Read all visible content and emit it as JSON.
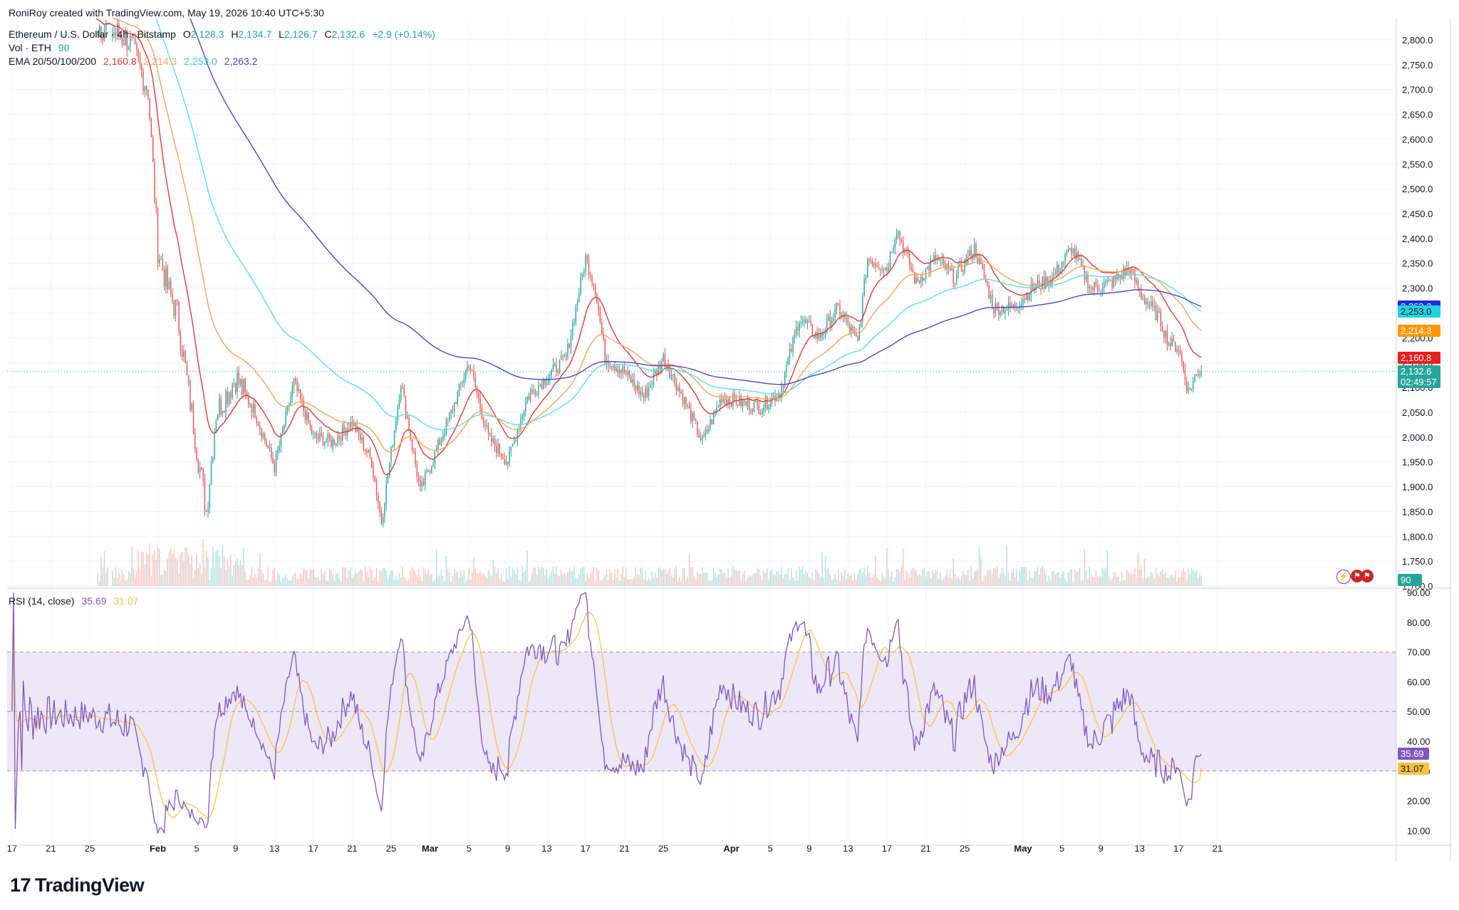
{
  "credit": "RoniRoy created with TradingView.com, May 19, 2026 10:40 UTC+5:30",
  "symbol": {
    "name": "Ethereum / U.S. Dollar · 4h · Bitstamp",
    "o_label": "O",
    "o": "2,128.3",
    "h_label": "H",
    "h": "2,134.7",
    "l_label": "L",
    "l": "2,126.7",
    "c_label": "C",
    "c": "2,132.6",
    "change": "+2.9 (+0.14%)"
  },
  "volume_legend": {
    "label": "Vol · ETH",
    "value": "90"
  },
  "ema_legend": {
    "label": "EMA 20/50/100/200",
    "values": [
      "2,160.8",
      "2,214.3",
      "2,253.0",
      "2,263.2"
    ]
  },
  "rsi_legend": {
    "label": "RSI (14, close)",
    "rsi": "35.69",
    "ma": "31.07"
  },
  "price_tags": {
    "ema200": "2,263.2",
    "ema100": "2,253.0",
    "ema50": "2,214.3",
    "ema20": "2,160.8",
    "last": "2,132.6",
    "countdown": "02:49:57",
    "volume": "90",
    "rsi": "35.69",
    "rsi_ma": "31.07"
  },
  "colors": {
    "up": "#26a69a",
    "down": "#ef5350",
    "ema20": "#e53935",
    "ema50": "#f5a55a",
    "ema100": "#5ce0e6",
    "ema200": "#4f46c8",
    "rsi": "#7e57c2",
    "rsi_ma": "#f5c242",
    "rsi_band": "#ede7f6"
  },
  "brand": "TradingView",
  "chart_data": [
    {
      "type": "candlestick",
      "interval": "4h",
      "y_axis_ticks": [
        1700,
        1750,
        1800,
        1850,
        1900,
        1950,
        2000,
        2050,
        2100,
        2150,
        2200,
        2250,
        2300,
        2350,
        2400,
        2450,
        2500,
        2550,
        2600,
        2650,
        2700,
        2750,
        2800
      ],
      "y_axis_tick_labels": [
        "1,700.0",
        "1,750.0",
        "1,800.0",
        "1,850.0",
        "1,900.0",
        "1,950.0",
        "2,000.0",
        "2,050.0",
        "2,100.0",
        "2,150.0",
        "2,200.0",
        "2,250.0",
        "2,300.0",
        "2,350.0",
        "2,400.0",
        "2,450.0",
        "2,500.0",
        "2,550.0",
        "2,600.0",
        "2,650.0",
        "2,700.0",
        "2,750.0",
        "2,800.0"
      ],
      "ylim": [
        1700,
        2830
      ],
      "x_axis_tick_labels": [
        "17",
        "21",
        "25",
        "Feb",
        "5",
        "9",
        "13",
        "17",
        "21",
        "25",
        "Mar",
        "5",
        "9",
        "13",
        "17",
        "21",
        "25",
        "Apr",
        "5",
        "9",
        "13",
        "17",
        "21",
        "25",
        "May",
        "5",
        "9",
        "13",
        "17",
        "21"
      ],
      "close_path": [
        [
          "Jan 16",
          2880
        ],
        [
          "Jan 25",
          2840
        ],
        [
          "Jan 29",
          2800
        ],
        [
          "Jan 31",
          2700
        ],
        [
          "Feb 1",
          2380
        ],
        [
          "Feb 2",
          2300
        ],
        [
          "Feb 3",
          2250
        ],
        [
          "Feb 5",
          1980
        ],
        [
          "Feb 6",
          1850
        ],
        [
          "Feb 7",
          2050
        ],
        [
          "Feb 9",
          2120
        ],
        [
          "Feb 11",
          2050
        ],
        [
          "Feb 13",
          1940
        ],
        [
          "Feb 15",
          2110
        ],
        [
          "Feb 17",
          2000
        ],
        [
          "Feb 19",
          1990
        ],
        [
          "Feb 21",
          2030
        ],
        [
          "Feb 23",
          1950
        ],
        [
          "Feb 24",
          1830
        ],
        [
          "Feb 26",
          2110
        ],
        [
          "Feb 28",
          1890
        ],
        [
          "Mar 3",
          2040
        ],
        [
          "Mar 5",
          2150
        ],
        [
          "Mar 7",
          2000
        ],
        [
          "Mar 9",
          1950
        ],
        [
          "Mar 11",
          2080
        ],
        [
          "Mar 13",
          2120
        ],
        [
          "Mar 15",
          2160
        ],
        [
          "Mar 17",
          2360
        ],
        [
          "Mar 18",
          2300
        ],
        [
          "Mar 19",
          2160
        ],
        [
          "Mar 21",
          2130
        ],
        [
          "Mar 23",
          2080
        ],
        [
          "Mar 25",
          2160
        ],
        [
          "Mar 27",
          2080
        ],
        [
          "Mar 29",
          1990
        ],
        [
          "Mar 31",
          2080
        ],
        [
          "Apr 2",
          2070
        ],
        [
          "Apr 4",
          2060
        ],
        [
          "Apr 6",
          2090
        ],
        [
          "Apr 8",
          2240
        ],
        [
          "Apr 10",
          2200
        ],
        [
          "Apr 12",
          2260
        ],
        [
          "Apr 14",
          2190
        ],
        [
          "Apr 15",
          2360
        ],
        [
          "Apr 17",
          2340
        ],
        [
          "Apr 18",
          2420
        ],
        [
          "Apr 20",
          2310
        ],
        [
          "Apr 22",
          2360
        ],
        [
          "Apr 24",
          2320
        ],
        [
          "Apr 26",
          2380
        ],
        [
          "Apr 28",
          2260
        ],
        [
          "Apr 30",
          2260
        ],
        [
          "May 2",
          2300
        ],
        [
          "May 4",
          2320
        ],
        [
          "May 6",
          2380
        ],
        [
          "May 8",
          2300
        ],
        [
          "May 10",
          2310
        ],
        [
          "May 12",
          2340
        ],
        [
          "May 13",
          2290
        ],
        [
          "May 15",
          2240
        ],
        [
          "May 16",
          2190
        ],
        [
          "May 17",
          2180
        ],
        [
          "May 18",
          2090
        ],
        [
          "May 19",
          2132.6
        ]
      ],
      "series": [
        {
          "name": "EMA 20",
          "last": 2160.8
        },
        {
          "name": "EMA 50",
          "last": 2214.3
        },
        {
          "name": "EMA 100",
          "last": 2253.0
        },
        {
          "name": "EMA 200",
          "last": 2263.2
        }
      ],
      "last_price": 2132.6
    },
    {
      "type": "line",
      "y_axis_ticks": [
        10,
        20,
        30,
        40,
        50,
        60,
        70,
        80,
        90
      ],
      "y_axis_tick_labels": [
        "10.00",
        "20.00",
        "30.00",
        "40.00",
        "50.00",
        "60.00",
        "70.00",
        "80.00",
        "90.00"
      ],
      "ylim": [
        6,
        91
      ],
      "bands": [
        30,
        50,
        70
      ],
      "series": [
        {
          "name": "RSI (14, close)",
          "last": 35.69
        },
        {
          "name": "RSI-based MA",
          "last": 31.07
        }
      ]
    }
  ]
}
